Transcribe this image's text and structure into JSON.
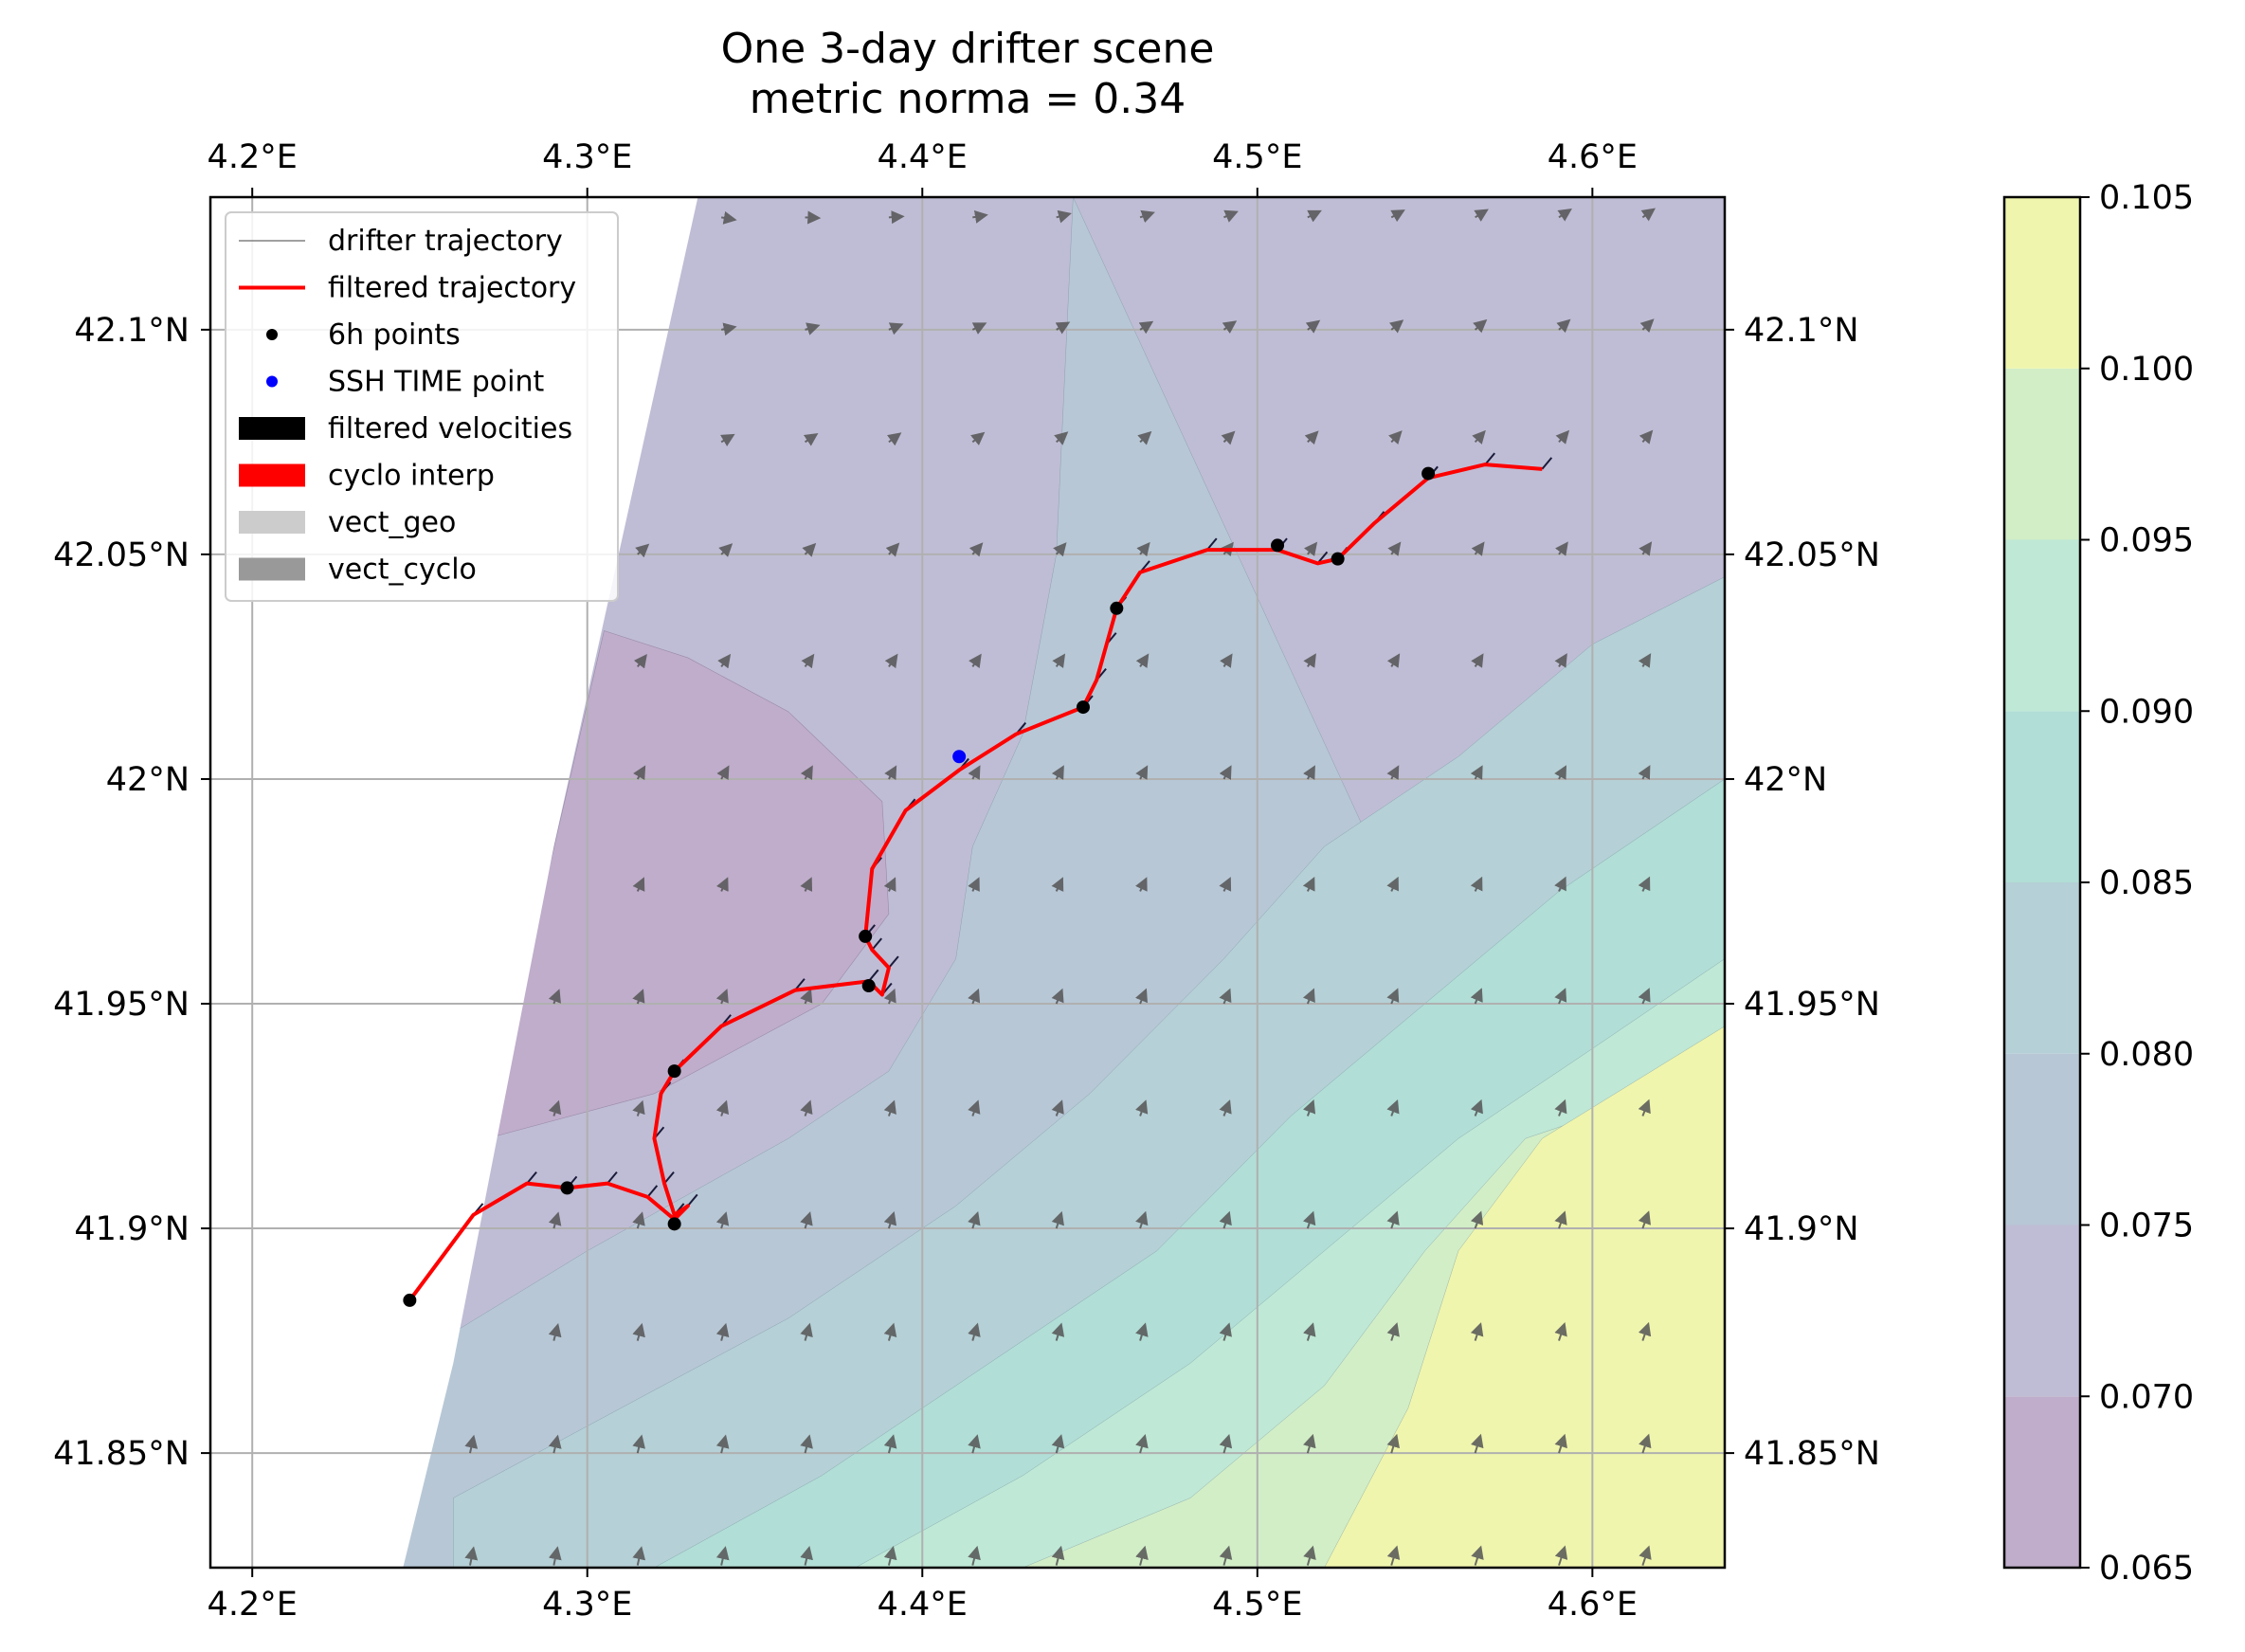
{
  "chart_data": {
    "type": "map",
    "title_lines": [
      "One 3-day drifter scene",
      "metric norma = 0.34"
    ],
    "x_ticks": [
      {
        "value": 4.2,
        "label": "4.2°E"
      },
      {
        "value": 4.3,
        "label": "4.3°E"
      },
      {
        "value": 4.4,
        "label": "4.4°E"
      },
      {
        "value": 4.5,
        "label": "4.5°E"
      },
      {
        "value": 4.6,
        "label": "4.6°E"
      }
    ],
    "y_ticks": [
      {
        "value": 41.85,
        "label": "41.85°N"
      },
      {
        "value": 41.9,
        "label": "41.9°N"
      },
      {
        "value": 41.95,
        "label": "41.95°N"
      },
      {
        "value": 42.0,
        "label": "42°N"
      },
      {
        "value": 42.05,
        "label": "42.05°N"
      },
      {
        "value": 42.1,
        "label": "42.1°N"
      }
    ],
    "xlim": [
      4.1875,
      4.6395
    ],
    "ylim": [
      41.8245,
      42.1295
    ],
    "grid": true,
    "legend_position": "top-left",
    "legend": [
      {
        "label": "drifter trajectory",
        "kind": "thin-line",
        "color": "#808080"
      },
      {
        "label": "filtered trajectory",
        "kind": "line",
        "color": "#ff0000"
      },
      {
        "label": "6h points",
        "kind": "dot",
        "color": "#000000"
      },
      {
        "label": "SSH TIME point",
        "kind": "dot",
        "color": "#0000ff"
      },
      {
        "label": "filtered velocities",
        "kind": "patch",
        "color": "#000000"
      },
      {
        "label": "cyclo interp",
        "kind": "patch",
        "color": "#ff0000"
      },
      {
        "label": "vect_geo",
        "kind": "patch",
        "color": "#cccccc"
      },
      {
        "label": "vect_cyclo",
        "kind": "patch",
        "color": "#999999"
      }
    ],
    "trajectory": [
      [
        4.247,
        41.884
      ],
      [
        4.256,
        41.893
      ],
      [
        4.266,
        41.903
      ],
      [
        4.282,
        41.91
      ],
      [
        4.294,
        41.909
      ],
      [
        4.306,
        41.91
      ],
      [
        4.318,
        41.907
      ],
      [
        4.326,
        41.902
      ],
      [
        4.33,
        41.905
      ],
      [
        4.326,
        41.903
      ],
      [
        4.323,
        41.91
      ],
      [
        4.32,
        41.92
      ],
      [
        4.322,
        41.93
      ],
      [
        4.326,
        41.935
      ],
      [
        4.34,
        41.945
      ],
      [
        4.362,
        41.953
      ],
      [
        4.384,
        41.955
      ],
      [
        4.388,
        41.952
      ],
      [
        4.39,
        41.958
      ],
      [
        4.385,
        41.962
      ],
      [
        4.383,
        41.965
      ],
      [
        4.385,
        41.98
      ],
      [
        4.395,
        41.993
      ],
      [
        4.411,
        42.002
      ],
      [
        4.428,
        42.01
      ],
      [
        4.448,
        42.016
      ],
      [
        4.452,
        42.022
      ],
      [
        4.455,
        42.03
      ],
      [
        4.458,
        42.038
      ],
      [
        4.465,
        42.046
      ],
      [
        4.485,
        42.051
      ],
      [
        4.506,
        42.051
      ],
      [
        4.518,
        42.048
      ],
      [
        4.524,
        42.049
      ],
      [
        4.535,
        42.057
      ],
      [
        4.551,
        42.067
      ],
      [
        4.568,
        42.07
      ],
      [
        4.585,
        42.069
      ]
    ],
    "points_6h": [
      [
        4.247,
        41.884
      ],
      [
        4.294,
        41.909
      ],
      [
        4.326,
        41.901
      ],
      [
        4.326,
        41.935
      ],
      [
        4.384,
        41.954
      ],
      [
        4.383,
        41.965
      ],
      [
        4.448,
        42.016
      ],
      [
        4.458,
        42.038
      ],
      [
        4.506,
        42.052
      ],
      [
        4.524,
        42.049
      ],
      [
        4.551,
        42.068
      ]
    ],
    "ssh_time_point": [
      4.411,
      42.005
    ],
    "vector_grid": {
      "lon_start": 4.19,
      "lon_step": 0.025,
      "lat_start": 41.825,
      "lat_step": 0.025
    },
    "coastline": [
      [
        4.245,
        41.8245
      ],
      [
        4.26,
        41.87
      ],
      [
        4.29,
        41.985
      ],
      [
        4.333,
        42.1295
      ]
    ],
    "contour_boundaries": [
      [
        [
          4.27,
          41.92
        ],
        [
          4.32,
          41.93
        ],
        [
          4.37,
          41.95
        ],
        [
          4.39,
          41.97
        ],
        [
          4.388,
          41.995
        ],
        [
          4.36,
          42.015
        ],
        [
          4.33,
          42.027
        ],
        [
          4.305,
          42.033
        ]
      ],
      [
        [
          4.245,
          41.87
        ],
        [
          4.3,
          41.895
        ],
        [
          4.36,
          41.92
        ],
        [
          4.39,
          41.935
        ],
        [
          4.41,
          41.96
        ],
        [
          4.415,
          41.985
        ],
        [
          4.43,
          42.01
        ],
        [
          4.44,
          42.05
        ],
        [
          4.445,
          42.1295
        ]
      ],
      [
        [
          4.26,
          41.84
        ],
        [
          4.31,
          41.86
        ],
        [
          4.36,
          41.88
        ],
        [
          4.41,
          41.905
        ],
        [
          4.45,
          41.93
        ],
        [
          4.49,
          41.96
        ],
        [
          4.52,
          41.985
        ],
        [
          4.56,
          42.005
        ],
        [
          4.6,
          42.03
        ],
        [
          4.6395,
          42.045
        ]
      ],
      [
        [
          4.32,
          41.8245
        ],
        [
          4.37,
          41.845
        ],
        [
          4.42,
          41.87
        ],
        [
          4.47,
          41.895
        ],
        [
          4.51,
          41.925
        ],
        [
          4.55,
          41.95
        ],
        [
          4.59,
          41.975
        ],
        [
          4.6395,
          42.0
        ]
      ],
      [
        [
          4.38,
          41.8245
        ],
        [
          4.43,
          41.845
        ],
        [
          4.48,
          41.87
        ],
        [
          4.52,
          41.895
        ],
        [
          4.56,
          41.92
        ],
        [
          4.6,
          41.94
        ],
        [
          4.6395,
          41.96
        ]
      ],
      [
        [
          4.43,
          41.8245
        ],
        [
          4.48,
          41.84
        ],
        [
          4.52,
          41.865
        ],
        [
          4.55,
          41.895
        ],
        [
          4.58,
          41.92
        ],
        [
          4.6395,
          41.935
        ]
      ],
      [
        [
          4.52,
          41.8245
        ],
        [
          4.545,
          41.86
        ],
        [
          4.56,
          41.895
        ],
        [
          4.585,
          41.92
        ],
        [
          4.6395,
          41.945
        ]
      ]
    ],
    "colorbar": {
      "min": 0.065,
      "max": 0.105,
      "levels": [
        0.065,
        0.07,
        0.075,
        0.08,
        0.085,
        0.09,
        0.095,
        0.1,
        0.105
      ],
      "tick_labels": [
        "0.065",
        "0.070",
        "0.075",
        "0.080",
        "0.085",
        "0.090",
        "0.095",
        "0.100",
        "0.105"
      ],
      "colors": [
        "#bfadcb",
        "#bfbdd5",
        "#b7c7d6",
        "#b5d0d6",
        "#b1ded6",
        "#bfe8d6",
        "#d2eec7",
        "#eff5ad"
      ]
    }
  }
}
